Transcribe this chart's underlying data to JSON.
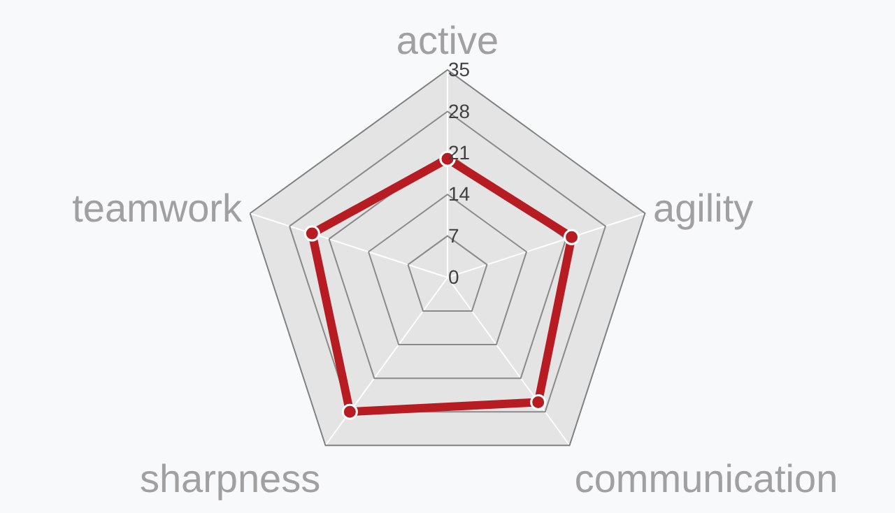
{
  "chart_data": {
    "type": "radar",
    "categories": [
      "active",
      "agility",
      "communication",
      "sharpness",
      "teamwork"
    ],
    "series": [
      {
        "color": "#b71c23",
        "values": [
          20,
          22,
          26,
          28,
          24
        ]
      }
    ],
    "ylim": [
      0,
      35
    ],
    "yticks": [
      0,
      7,
      14,
      21,
      28,
      35
    ],
    "grid": true,
    "marker": "circle",
    "line_style": "solid"
  }
}
